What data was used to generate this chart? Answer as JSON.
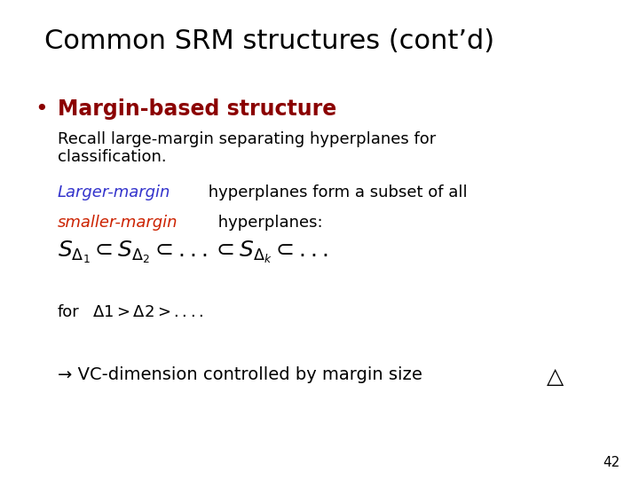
{
  "title": "Common SRM structures (cont’d)",
  "title_fontsize": 22,
  "title_color": "#000000",
  "bg_color": "#ffffff",
  "bullet_color": "#8B0000",
  "bullet_text": "Margin-based structure",
  "bullet_fontsize": 17,
  "body1_line1": "Recall large-margin separating hyperplanes for",
  "body1_line2": "classification.",
  "body1_fontsize": 13,
  "body1_color": "#000000",
  "body2_part1": "Larger-margin",
  "body2_part1_color": "#3333cc",
  "body2_rest1": " hyperplanes form a subset of all",
  "body2_part3": "smaller-margin",
  "body2_part3_color": "#cc2200",
  "body2_rest2": " hyperplanes:",
  "body2_fontsize": 13,
  "formula": "$S_{\\Delta_1} \\subset S_{\\Delta_2} \\subset ... \\subset S_{\\Delta_k} \\subset ...$",
  "formula_fontsize": 18,
  "for_text": "for",
  "for_math": "$\\Delta 1 > \\Delta 2 > ....$",
  "for_fontsize": 13,
  "arrow_line": "→ VC-dimension controlled by margin size",
  "arrow_fontsize": 14,
  "page_num": "42",
  "page_fontsize": 11
}
